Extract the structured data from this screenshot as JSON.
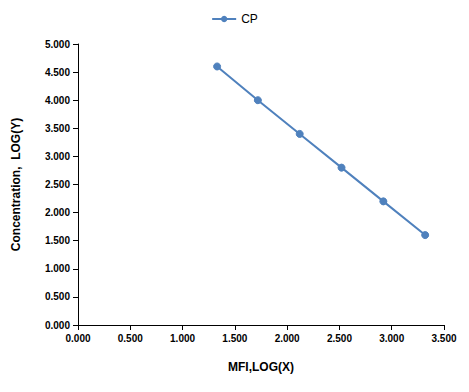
{
  "chart_data": {
    "type": "line",
    "x_label": "MFI,LOG(X)",
    "y_label": "Concentration,  LOG(Y)",
    "series": [
      {
        "name": "CP",
        "color": "#4f81bd",
        "marker": "circle",
        "x": [
          1.33,
          1.72,
          2.12,
          2.52,
          2.92,
          3.32
        ],
        "values": [
          4.6,
          4.0,
          3.4,
          2.8,
          2.2,
          1.6
        ]
      }
    ],
    "xlim": [
      0,
      3.5
    ],
    "xticks": [
      {
        "value": 0,
        "label": "0.000"
      },
      {
        "value": 0.5,
        "label": "0.500"
      },
      {
        "value": 1,
        "label": "1.000"
      },
      {
        "value": 1.5,
        "label": "1.500"
      },
      {
        "value": 2,
        "label": "2.000"
      },
      {
        "value": 2.5,
        "label": "2.500"
      },
      {
        "value": 3,
        "label": "3.000"
      },
      {
        "value": 3.5,
        "label": "3.500"
      }
    ],
    "ylim": [
      0,
      5
    ],
    "yticks": [
      {
        "value": 0,
        "label": "0.000"
      },
      {
        "value": 0.5,
        "label": "0.500"
      },
      {
        "value": 1,
        "label": "1.000"
      },
      {
        "value": 1.5,
        "label": "1.500"
      },
      {
        "value": 2,
        "label": "2.000"
      },
      {
        "value": 2.5,
        "label": "2.500"
      },
      {
        "value": 3,
        "label": "3.000"
      },
      {
        "value": 3.5,
        "label": "3.500"
      },
      {
        "value": 4,
        "label": "4.000"
      },
      {
        "value": 4.5,
        "label": "4.500"
      },
      {
        "value": 5,
        "label": "5.000"
      }
    ],
    "grid": false,
    "legend": "top"
  }
}
